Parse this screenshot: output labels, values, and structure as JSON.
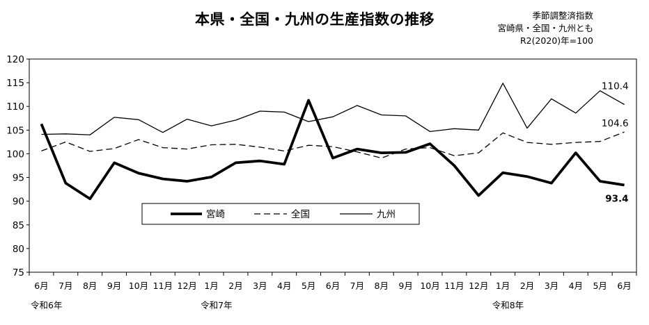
{
  "header": {
    "title": "本県・全国・九州の生産指数の推移",
    "note_lines": [
      "季節調整済指数",
      "宮崎県・全国・九州とも",
      "R2(2020)年=100"
    ]
  },
  "chart_data": {
    "type": "line",
    "title": "本県・全国・九州の生産指数の推移",
    "categories": [
      "6月",
      "7月",
      "8月",
      "9月",
      "10月",
      "11月",
      "12月",
      "1月",
      "2月",
      "3月",
      "4月",
      "5月",
      "6月",
      "7月",
      "8月",
      "9月",
      "10月",
      "11月",
      "12月",
      "1月",
      "2月",
      "3月",
      "4月",
      "5月",
      "6月"
    ],
    "year_labels": [
      {
        "index": 0,
        "label": "令和6年"
      },
      {
        "index": 7,
        "label": "令和7年"
      },
      {
        "index": 19,
        "label": "令和8年"
      }
    ],
    "ylim": [
      75,
      120
    ],
    "yticks": [
      75,
      80,
      85,
      90,
      95,
      100,
      105,
      110,
      115,
      120
    ],
    "grid": false,
    "legend_position": "bottom-left",
    "series": [
      {
        "name": "宮崎",
        "style": "thick-solid",
        "color": "#000000",
        "values": [
          106.3,
          93.8,
          90.5,
          98.1,
          95.9,
          94.7,
          94.2,
          95.1,
          98.1,
          98.5,
          97.8,
          111.3,
          99.1,
          101.0,
          100.2,
          100.3,
          102.1,
          97.5,
          91.2,
          96.0,
          95.2,
          93.8,
          100.2,
          94.2,
          93.4
        ],
        "end_label": "93.4"
      },
      {
        "name": "全国",
        "style": "dashed",
        "color": "#000000",
        "values": [
          100.6,
          102.5,
          100.5,
          101.1,
          103.0,
          101.3,
          101.0,
          101.9,
          102.0,
          101.4,
          100.6,
          101.8,
          101.5,
          100.4,
          99.1,
          101.0,
          101.3,
          99.6,
          100.2,
          104.4,
          102.4,
          102.0,
          102.4,
          102.6,
          104.6
        ],
        "end_label": "104.6"
      },
      {
        "name": "九州",
        "style": "thin-solid",
        "color": "#000000",
        "values": [
          104.1,
          104.2,
          104.0,
          107.7,
          107.2,
          104.5,
          107.3,
          105.9,
          107.1,
          109.0,
          108.8,
          106.8,
          107.8,
          110.2,
          108.2,
          108.0,
          104.7,
          105.3,
          105.0,
          114.9,
          105.4,
          111.6,
          108.6,
          113.3,
          110.4
        ],
        "end_label": "110.4"
      }
    ]
  }
}
